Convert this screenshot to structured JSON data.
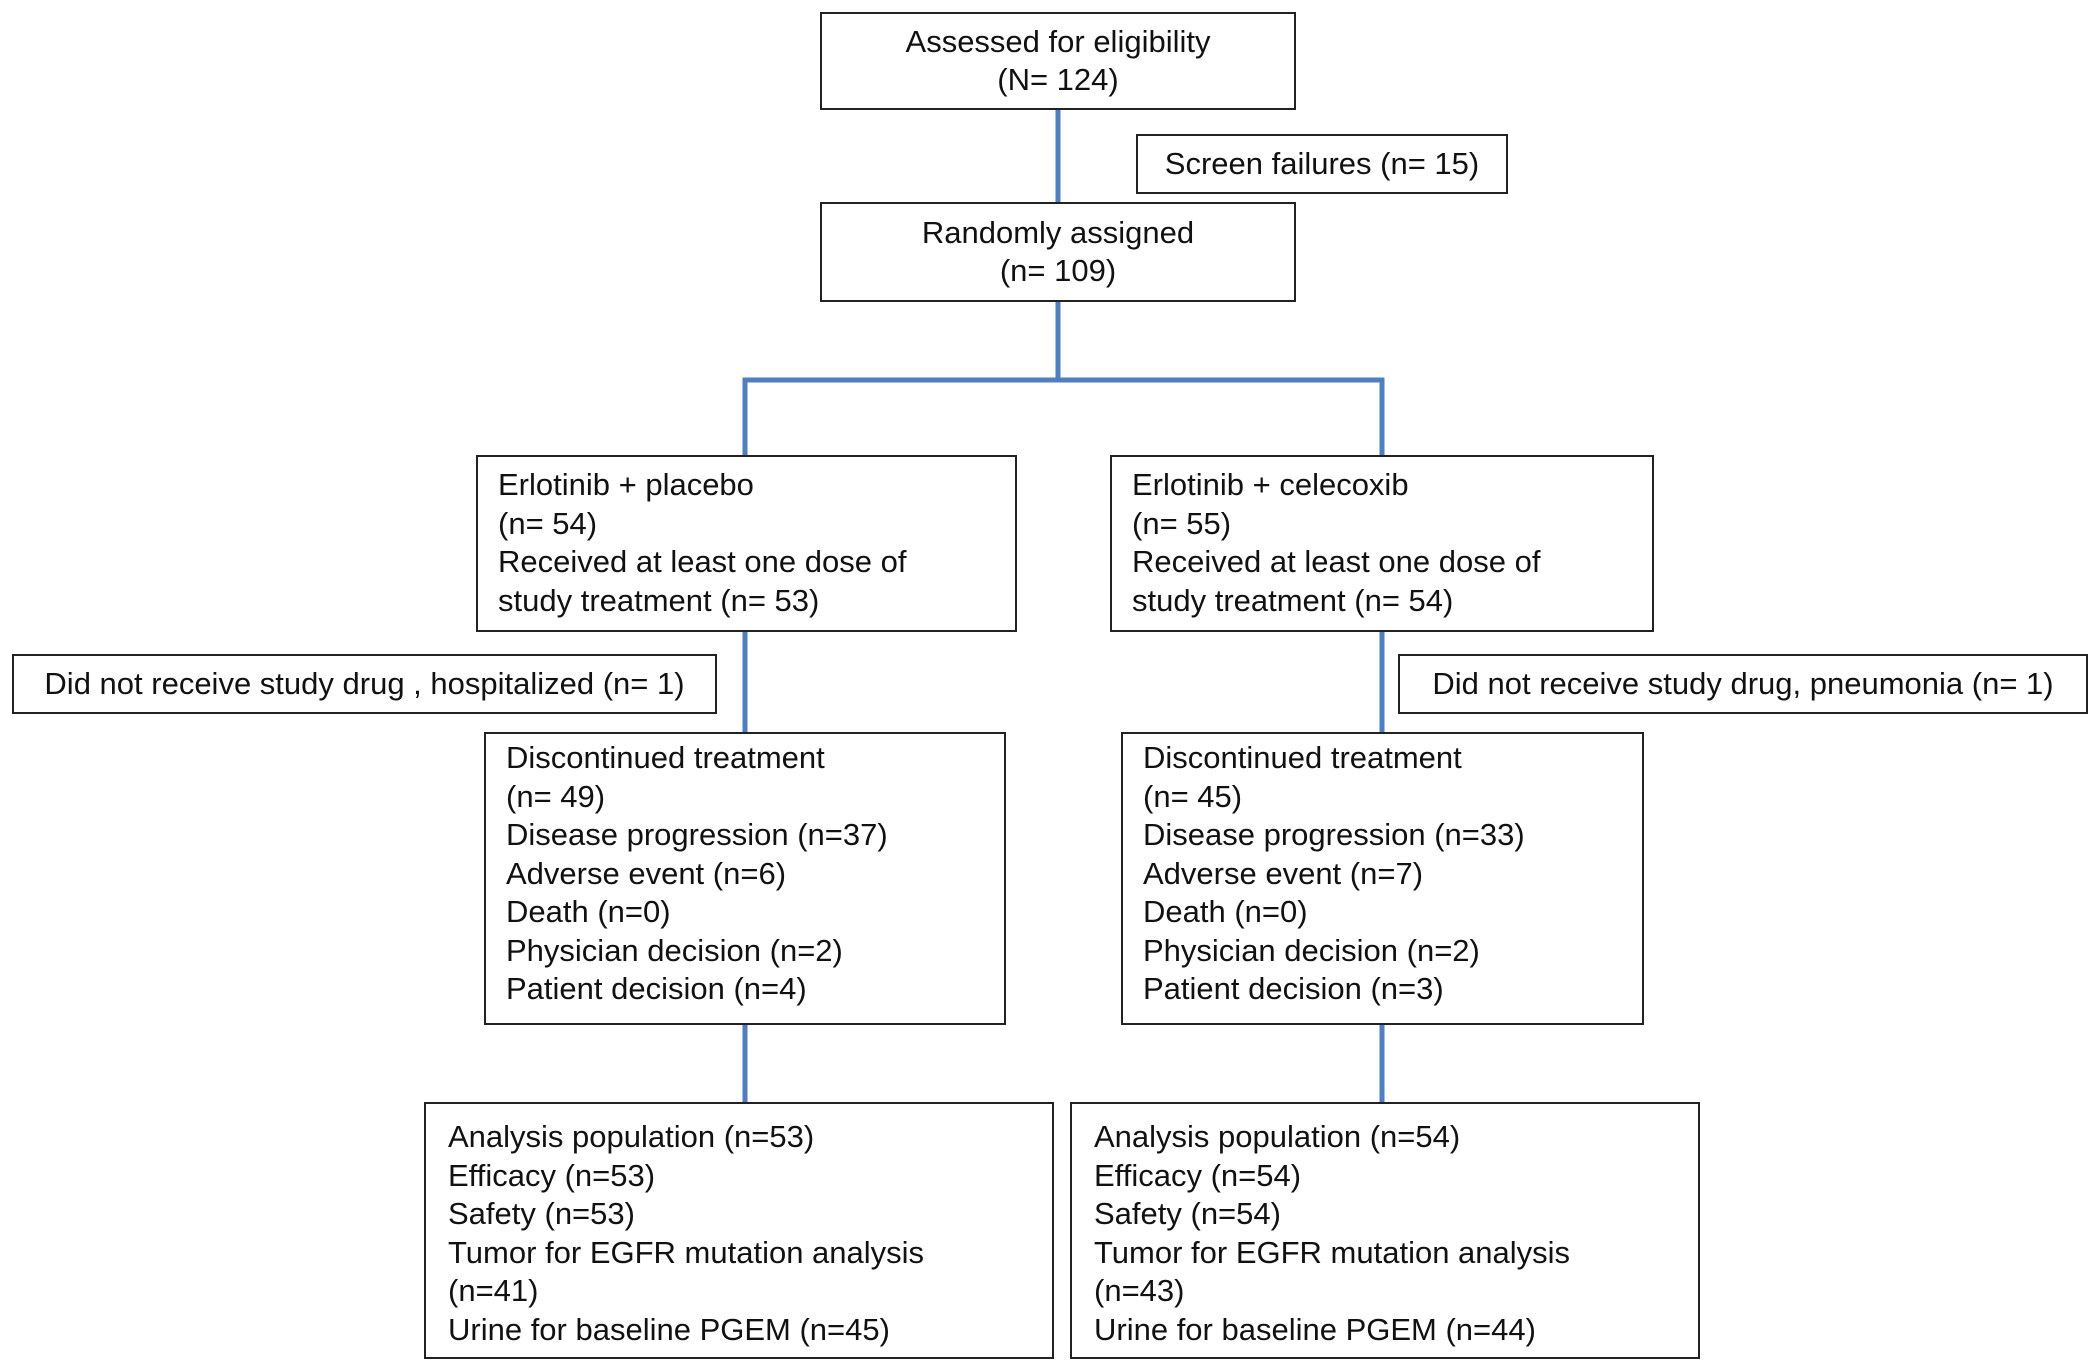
{
  "diagram": {
    "assessed": {
      "title": "Assessed for eligibility",
      "count": "(N= 124)"
    },
    "screen_failures": {
      "label": "Screen failures (n= 15)"
    },
    "randomized": {
      "title": "Randomly assigned",
      "count": "(n= 109)"
    },
    "arms": [
      {
        "enrollment": {
          "name": "Erlotinib + placebo",
          "count": "(n= 54)",
          "received_line1": "Received at least one dose  of",
          "received_line2": "study treatment (n= 53)"
        },
        "excluded": {
          "label": "Did not receive study drug , hospitalized (n= 1)"
        },
        "discontinued": {
          "lines": [
            "Discontinued treatment",
            "(n= 49)",
            "Disease progression (n=37)",
            "Adverse event (n=6)",
            "Death (n=0)",
            "Physician decision (n=2)",
            "Patient decision (n=4)"
          ]
        },
        "analysis": {
          "lines": [
            "Analysis population (n=53)",
            "Efficacy (n=53)",
            "Safety (n=53)",
            "Tumor for EGFR mutation analysis",
            "(n=41)",
            "Urine for baseline PGEM (n=45)"
          ]
        }
      },
      {
        "enrollment": {
          "name": "Erlotinib + celecoxib",
          "count": "(n= 55)",
          "received_line1": "Received at least one dose of",
          "received_line2": "study treatment  (n= 54)"
        },
        "excluded": {
          "label": "Did not receive study drug, pneumonia (n= 1)"
        },
        "discontinued": {
          "lines": [
            "Discontinued treatment",
            "(n= 45)",
            "Disease progression (n=33)",
            "Adverse event (n=7)",
            "Death (n=0)",
            "Physician decision (n=2)",
            "Patient decision (n=3)"
          ]
        },
        "analysis": {
          "lines": [
            "Analysis population (n=54)",
            "Efficacy (n=54)",
            "Safety (n=54)",
            "Tumor for EGFR mutation analysis",
            "(n=43)",
            "Urine for baseline PGEM (n=44)"
          ]
        }
      }
    ],
    "colors": {
      "connector": "#4f7fbf",
      "border": "#222222"
    }
  }
}
